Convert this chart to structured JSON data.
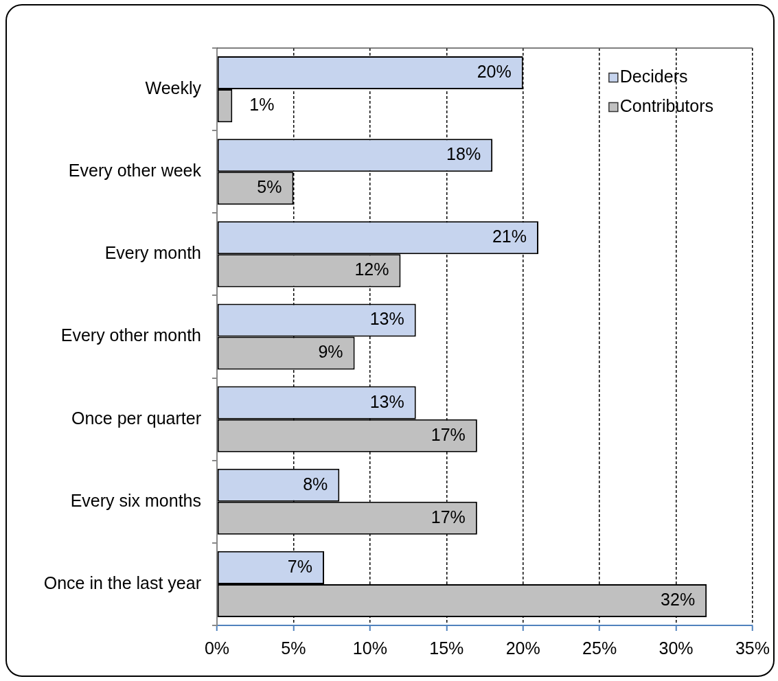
{
  "chart_data": {
    "type": "bar",
    "orientation": "horizontal",
    "categories": [
      "Weekly",
      "Every other week",
      "Every month",
      "Every other month",
      "Once per quarter",
      "Every six months",
      "Once in the last year"
    ],
    "series": [
      {
        "name": "Deciders",
        "color": "#c6d4ee",
        "values": [
          20,
          18,
          21,
          13,
          13,
          8,
          7
        ],
        "value_labels": [
          "20%",
          "18%",
          "21%",
          "13%",
          "13%",
          "8%",
          "7%"
        ]
      },
      {
        "name": "Contributors",
        "color": "#c0c0c0",
        "values": [
          1,
          5,
          12,
          9,
          17,
          17,
          32
        ],
        "value_labels": [
          "1%",
          "5%",
          "12%",
          "9%",
          "17%",
          "17%",
          "32%"
        ]
      }
    ],
    "xlim": [
      0,
      35
    ],
    "xticks": [
      {
        "value": 0,
        "label": "0%"
      },
      {
        "value": 5,
        "label": "5%"
      },
      {
        "value": 10,
        "label": "10%"
      },
      {
        "value": 15,
        "label": "15%"
      },
      {
        "value": 20,
        "label": "20%"
      },
      {
        "value": 25,
        "label": "25%"
      },
      {
        "value": 30,
        "label": "30%"
      },
      {
        "value": 35,
        "label": "35%"
      }
    ],
    "grid": "x",
    "legend": "top right"
  }
}
